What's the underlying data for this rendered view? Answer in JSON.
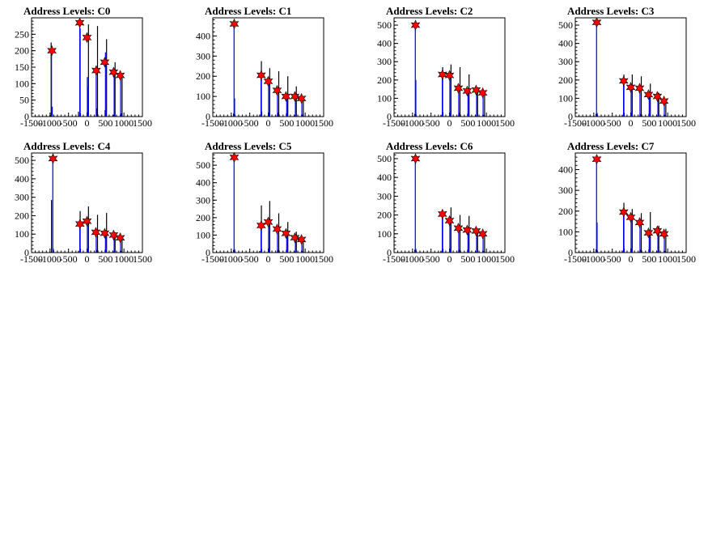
{
  "chart_data": [
    {
      "type": "bar",
      "title": "Address Levels: C0",
      "xlim": [
        -1500,
        1500
      ],
      "ylim": [
        0,
        300
      ],
      "xticks": [
        -1500,
        -1000,
        -500,
        0,
        500,
        1000,
        1500
      ],
      "yticks": [
        0,
        50,
        100,
        150,
        200,
        250
      ],
      "tick_labels_x": [
        "-1500",
        "-1000",
        "-500",
        "0",
        "500",
        "1000",
        "1500"
      ],
      "tick_labels_y": [
        "0",
        "50",
        "100",
        "150",
        "200",
        "250"
      ],
      "series": [
        {
          "color": "#000000",
          "x": [
            -1000,
            -970,
            -230,
            -185,
            0,
            40,
            240,
            285,
            490,
            530,
            720,
            760,
            900,
            950
          ],
          "values": [
            5,
            225,
            15,
            268,
            5,
            280,
            2,
            275,
            20,
            235,
            5,
            165,
            2,
            130
          ]
        },
        {
          "color": "#0000ff",
          "x": [
            -960,
            -940,
            -195,
            -175,
            10,
            30,
            250,
            265,
            500,
            520,
            735,
            755,
            910,
            930
          ],
          "values": [
            200,
            30,
            270,
            10,
            120,
            90,
            140,
            25,
            195,
            18,
            140,
            10,
            125,
            10
          ]
        }
      ],
      "peaks": {
        "x": [
          -950,
          -195,
          0,
          250,
          480,
          720,
          900
        ],
        "values": [
          200,
          285,
          240,
          140,
          165,
          135,
          125
        ]
      }
    },
    {
      "type": "bar",
      "title": "Address Levels: C1",
      "xlim": [
        -1500,
        1500
      ],
      "ylim": [
        0,
        490
      ],
      "xticks": [
        -1500,
        -1000,
        -500,
        0,
        500,
        1000,
        1500
      ],
      "yticks": [
        0,
        100,
        200,
        300,
        400
      ],
      "tick_labels_x": [
        "-1500",
        "-1000",
        "-500",
        "0",
        "500",
        "1000",
        "1500"
      ],
      "tick_labels_y": [
        "0",
        "100",
        "200",
        "300",
        "400"
      ],
      "series": [
        {
          "color": "#000000",
          "x": [
            -1000,
            -940,
            -230,
            -185,
            0,
            40,
            240,
            285,
            490,
            530,
            720,
            760,
            900,
            950
          ],
          "values": [
            5,
            15,
            10,
            275,
            5,
            240,
            5,
            225,
            15,
            200,
            5,
            150,
            2,
            100
          ]
        },
        {
          "color": "#0000ff",
          "x": [
            -925,
            -910,
            -195,
            -175,
            10,
            30,
            250,
            265,
            500,
            520,
            735,
            755,
            910,
            930
          ],
          "values": [
            465,
            90,
            200,
            25,
            190,
            20,
            130,
            20,
            100,
            15,
            95,
            10,
            90,
            10
          ]
        }
      ],
      "peaks": {
        "x": [
          -920,
          -190,
          0,
          240,
          480,
          720,
          900
        ],
        "values": [
          460,
          205,
          175,
          130,
          100,
          100,
          90
        ]
      }
    },
    {
      "type": "bar",
      "title": "Address Levels: C2",
      "xlim": [
        -1500,
        1500
      ],
      "ylim": [
        0,
        540
      ],
      "xticks": [
        -1500,
        -1000,
        -500,
        0,
        500,
        1000,
        1500
      ],
      "yticks": [
        0,
        100,
        200,
        300,
        400,
        500
      ],
      "tick_labels_x": [
        "-1500",
        "-1000",
        "-500",
        "0",
        "500",
        "1000",
        "1500"
      ],
      "tick_labels_y": [
        "0",
        "100",
        "200",
        "300",
        "400",
        "500"
      ],
      "series": [
        {
          "color": "#000000",
          "x": [
            -1000,
            -940,
            -230,
            -185,
            0,
            40,
            240,
            285,
            490,
            530,
            720,
            760,
            900,
            950
          ],
          "values": [
            5,
            15,
            10,
            270,
            5,
            285,
            5,
            270,
            15,
            230,
            5,
            160,
            2,
            120
          ]
        },
        {
          "color": "#0000ff",
          "x": [
            -925,
            -910,
            -195,
            -175,
            10,
            30,
            250,
            265,
            500,
            520,
            735,
            755,
            910,
            930
          ],
          "values": [
            500,
            200,
            230,
            25,
            220,
            20,
            150,
            20,
            140,
            15,
            140,
            10,
            130,
            10
          ]
        }
      ],
      "peaks": {
        "x": [
          -920,
          -190,
          0,
          240,
          480,
          720,
          900
        ],
        "values": [
          500,
          230,
          225,
          155,
          140,
          145,
          130
        ]
      }
    },
    {
      "type": "bar",
      "title": "Address Levels: C3",
      "xlim": [
        -1500,
        1500
      ],
      "ylim": [
        0,
        540
      ],
      "xticks": [
        -1500,
        -1000,
        -500,
        0,
        500,
        1000,
        1500
      ],
      "yticks": [
        0,
        100,
        200,
        300,
        400,
        500
      ],
      "tick_labels_x": [
        "-1500",
        "-1000",
        "-500",
        "0",
        "500",
        "1000",
        "1500"
      ],
      "tick_labels_y": [
        "0",
        "100",
        "200",
        "300",
        "400",
        "500"
      ],
      "series": [
        {
          "color": "#000000",
          "x": [
            -1000,
            -940,
            -230,
            -185,
            0,
            40,
            240,
            285,
            490,
            530,
            720,
            760,
            900,
            950
          ],
          "values": [
            5,
            15,
            10,
            230,
            5,
            230,
            5,
            220,
            15,
            180,
            5,
            130,
            2,
            90
          ]
        },
        {
          "color": "#0000ff",
          "x": [
            -925,
            -910,
            -195,
            -175,
            10,
            30,
            250,
            265,
            500,
            520,
            735,
            755,
            910,
            930
          ],
          "values": [
            515,
            20,
            195,
            20,
            160,
            20,
            155,
            15,
            120,
            10,
            110,
            10,
            85,
            8
          ]
        }
      ],
      "peaks": {
        "x": [
          -920,
          -190,
          0,
          240,
          480,
          720,
          900
        ],
        "values": [
          515,
          195,
          160,
          155,
          120,
          110,
          85
        ]
      }
    },
    {
      "type": "bar",
      "title": "Address Levels: C4",
      "xlim": [
        -1500,
        1500
      ],
      "ylim": [
        0,
        540
      ],
      "xticks": [
        -1500,
        -1000,
        -500,
        0,
        500,
        1000,
        1500
      ],
      "yticks": [
        0,
        100,
        200,
        300,
        400,
        500
      ],
      "tick_labels_x": [
        "-1500",
        "-1000",
        "-500",
        "0",
        "500",
        "1000",
        "1500"
      ],
      "tick_labels_y": [
        "0",
        "100",
        "200",
        "300",
        "400",
        "500"
      ],
      "series": [
        {
          "color": "#000000",
          "x": [
            -1000,
            -960,
            -230,
            -185,
            0,
            40,
            240,
            285,
            490,
            530,
            720,
            760,
            900,
            950
          ],
          "values": [
            5,
            285,
            10,
            225,
            5,
            250,
            5,
            205,
            15,
            215,
            5,
            110,
            2,
            90
          ]
        },
        {
          "color": "#0000ff",
          "x": [
            -925,
            -910,
            -195,
            -175,
            10,
            30,
            250,
            265,
            500,
            520,
            735,
            755,
            910,
            930
          ],
          "values": [
            510,
            20,
            155,
            20,
            170,
            20,
            110,
            15,
            105,
            10,
            95,
            10,
            80,
            8
          ]
        }
      ],
      "peaks": {
        "x": [
          -920,
          -190,
          0,
          240,
          480,
          720,
          900
        ],
        "values": [
          510,
          155,
          170,
          110,
          105,
          95,
          80
        ]
      }
    },
    {
      "type": "bar",
      "title": "Address Levels: C5",
      "xlim": [
        -1500,
        1500
      ],
      "ylim": [
        0,
        570
      ],
      "xticks": [
        -1500,
        -1000,
        -500,
        0,
        500,
        1000,
        1500
      ],
      "yticks": [
        0,
        100,
        200,
        300,
        400,
        500
      ],
      "tick_labels_x": [
        "-1500",
        "-1000",
        "-500",
        "0",
        "500",
        "1000",
        "1500"
      ],
      "tick_labels_y": [
        "0",
        "100",
        "200",
        "300",
        "400",
        "500"
      ],
      "series": [
        {
          "color": "#000000",
          "x": [
            -1000,
            -940,
            -230,
            -185,
            0,
            40,
            240,
            285,
            490,
            530,
            720,
            760,
            900,
            950
          ],
          "values": [
            5,
            15,
            10,
            270,
            5,
            295,
            5,
            225,
            15,
            175,
            5,
            120,
            2,
            80
          ]
        },
        {
          "color": "#0000ff",
          "x": [
            -925,
            -910,
            -195,
            -175,
            10,
            30,
            250,
            265,
            500,
            520,
            735,
            755,
            910,
            930
          ],
          "values": [
            545,
            20,
            155,
            20,
            175,
            20,
            135,
            15,
            110,
            10,
            85,
            10,
            75,
            8
          ]
        }
      ],
      "peaks": {
        "x": [
          -920,
          -190,
          0,
          240,
          480,
          720,
          900
        ],
        "values": [
          545,
          155,
          175,
          135,
          110,
          85,
          75
        ]
      }
    },
    {
      "type": "bar",
      "title": "Address Levels: C6",
      "xlim": [
        -1500,
        1500
      ],
      "ylim": [
        0,
        530
      ],
      "xticks": [
        -1500,
        -1000,
        -500,
        0,
        500,
        1000,
        1500
      ],
      "yticks": [
        0,
        100,
        200,
        300,
        400,
        500
      ],
      "tick_labels_x": [
        "-1500",
        "-1000",
        "-500",
        "0",
        "500",
        "1000",
        "1500"
      ],
      "tick_labels_y": [
        "0",
        "100",
        "200",
        "300",
        "400",
        "500"
      ],
      "series": [
        {
          "color": "#000000",
          "x": [
            -1000,
            -940,
            -230,
            -185,
            0,
            40,
            240,
            285,
            490,
            530,
            720,
            760,
            900,
            950
          ],
          "values": [
            5,
            15,
            10,
            225,
            5,
            240,
            5,
            200,
            15,
            195,
            5,
            120,
            2,
            110
          ]
        },
        {
          "color": "#0000ff",
          "x": [
            -925,
            -910,
            -195,
            -175,
            10,
            30,
            250,
            265,
            500,
            520,
            735,
            755,
            910,
            930
          ],
          "values": [
            500,
            20,
            205,
            20,
            170,
            20,
            130,
            15,
            120,
            10,
            115,
            10,
            100,
            8
          ]
        }
      ],
      "peaks": {
        "x": [
          -920,
          -190,
          0,
          240,
          480,
          720,
          900
        ],
        "values": [
          500,
          205,
          170,
          130,
          120,
          115,
          100
        ]
      }
    },
    {
      "type": "bar",
      "title": "Address Levels: C7",
      "xlim": [
        -1500,
        1500
      ],
      "ylim": [
        0,
        480
      ],
      "xticks": [
        -1500,
        -1000,
        -500,
        0,
        500,
        1000,
        1500
      ],
      "yticks": [
        0,
        100,
        200,
        300,
        400
      ],
      "tick_labels_x": [
        "-1500",
        "-1000",
        "-500",
        "0",
        "500",
        "1000",
        "1500"
      ],
      "tick_labels_y": [
        "0",
        "100",
        "200",
        "300",
        "400"
      ],
      "series": [
        {
          "color": "#000000",
          "x": [
            -1000,
            -940,
            -230,
            -185,
            0,
            40,
            240,
            285,
            490,
            530,
            720,
            760,
            900,
            950
          ],
          "values": [
            5,
            15,
            10,
            240,
            5,
            210,
            5,
            190,
            15,
            195,
            5,
            130,
            2,
            115
          ]
        },
        {
          "color": "#0000ff",
          "x": [
            -925,
            -910,
            -195,
            -175,
            10,
            30,
            250,
            265,
            500,
            520,
            735,
            755,
            910,
            930
          ],
          "values": [
            450,
            145,
            195,
            20,
            170,
            20,
            145,
            15,
            95,
            10,
            105,
            10,
            90,
            8
          ]
        }
      ],
      "peaks": {
        "x": [
          -920,
          -190,
          0,
          240,
          480,
          720,
          900
        ],
        "values": [
          450,
          195,
          170,
          145,
          95,
          105,
          90
        ]
      }
    }
  ]
}
